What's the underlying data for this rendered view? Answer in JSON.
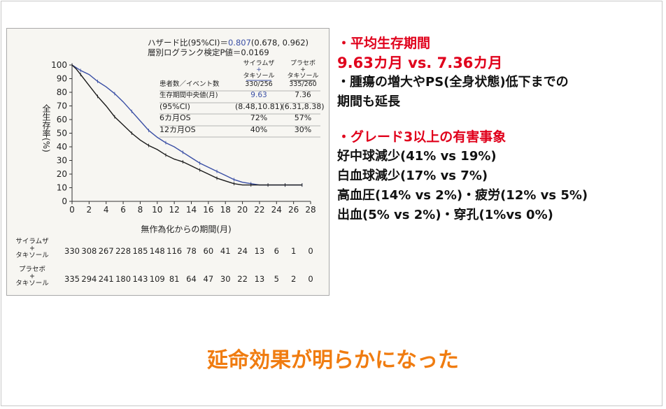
{
  "chart_data": {
    "type": "line",
    "ylabel": "全生存率(%)",
    "xlabel": "無作為化からの期間(月)",
    "xlim": [
      0,
      28
    ],
    "ylim": [
      0,
      100
    ],
    "xticks": [
      0,
      2,
      4,
      6,
      8,
      10,
      12,
      14,
      16,
      18,
      20,
      22,
      24,
      26,
      28
    ],
    "yticks": [
      0,
      10,
      20,
      30,
      40,
      50,
      60,
      70,
      80,
      90,
      100
    ],
    "series": [
      {
        "name": "サイラムザ+タキソール",
        "color": "#3a4fa5",
        "x": [
          0,
          0.5,
          1,
          2,
          3,
          4,
          5,
          6,
          7,
          8,
          9,
          10,
          11,
          12,
          13,
          14,
          15,
          16,
          17,
          18,
          19,
          20,
          21,
          22,
          23,
          24,
          25,
          26,
          27
        ],
        "y": [
          100,
          98,
          96,
          93,
          88,
          84,
          79,
          73,
          66,
          59,
          52,
          47,
          43,
          40,
          36,
          32,
          28,
          25,
          22,
          19,
          16,
          14,
          13,
          12,
          12,
          12,
          12,
          12,
          12
        ]
      },
      {
        "name": "プラセボ+タキソール",
        "color": "#1a1a1a",
        "x": [
          0,
          0.5,
          1,
          2,
          3,
          4,
          5,
          6,
          7,
          8,
          9,
          10,
          11,
          12,
          13,
          14,
          15,
          16,
          17,
          18,
          19,
          20,
          21,
          22,
          23,
          24,
          25,
          26,
          27
        ],
        "y": [
          100,
          97,
          93,
          85,
          77,
          70,
          62,
          56,
          50,
          45,
          41,
          38,
          34,
          31,
          29,
          26,
          23,
          20,
          17,
          15,
          13,
          12,
          12,
          12,
          12,
          12,
          12,
          12,
          12
        ]
      }
    ],
    "annotation": {
      "hr_label": "ハザード比(95%CI)＝",
      "hr_value": "0.807",
      "hr_ci": "(0.678, 0.962)",
      "logrank": "層別ログランク検定P値＝0.0169"
    },
    "stats_table": {
      "col1_header": [
        "サイラムザ",
        "+",
        "タキソール"
      ],
      "col2_header": [
        "プラセボ",
        "+",
        "タキソール"
      ],
      "rows": [
        {
          "label": "患者数／イベント数",
          "v1": "330/256",
          "v2": "335/260"
        },
        {
          "label": "生存期間中央値(月)",
          "v1": "9.63",
          "v2": "7.36"
        },
        {
          "label": "(95%CI)",
          "v1": "(8.48,10.81)",
          "v2": "(6.31,8.38)"
        },
        {
          "label": "6カ月OS",
          "v1": "72%",
          "v2": "57%"
        },
        {
          "label": "12カ月OS",
          "v1": "40%",
          "v2": "30%"
        }
      ]
    },
    "risk_table": {
      "rows": [
        {
          "label": [
            "サイラムザ",
            "+",
            "タキソール"
          ],
          "values": [
            "330",
            "308",
            "267",
            "228",
            "185",
            "148",
            "116",
            "78",
            "60",
            "41",
            "24",
            "13",
            "6",
            "1",
            "0"
          ]
        },
        {
          "label": [
            "プラセボ",
            "+",
            "タキソール"
          ],
          "values": [
            "335",
            "294",
            "241",
            "180",
            "143",
            "109",
            "81",
            "64",
            "47",
            "30",
            "22",
            "13",
            "5",
            "2",
            "0"
          ]
        }
      ]
    }
  },
  "right_text": {
    "h1": "・平均生存期間",
    "h1_value": "9.63カ月 vs. 7.36カ月",
    "h1_note_1": "・腫瘍の増大やPS(全身状態)低下までの",
    "h1_note_2": "期間も延長",
    "h2": "・グレード3以上の有害事象",
    "items": [
      "好中球減少(41% vs 19%)",
      "白血球減少(17% vs 7%)",
      "高血圧(14% vs 2%)・疲労(12% vs 5%)",
      "出血(5% vs 2%)・穿孔(1%vs 0%)"
    ]
  },
  "bottom_text": "延命効果が明らかになった"
}
